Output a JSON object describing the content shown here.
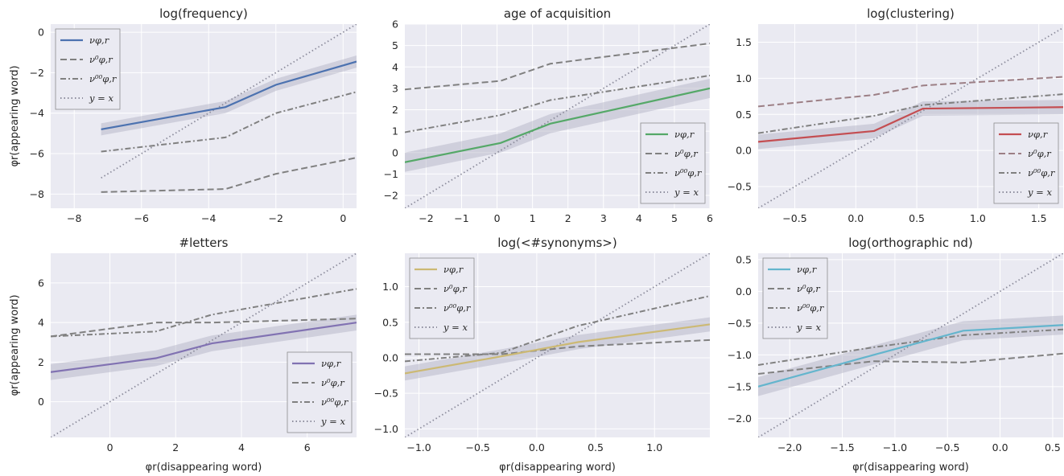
{
  "figure": {
    "ylabel_text": "φr(appearing word)",
    "xlabel_text": "φr(disappearing word)"
  },
  "legend_labels": {
    "nu": "νφ,r",
    "nu0": "ν⁰φ,r",
    "nu00": "ν⁰⁰φ,r",
    "identity": "y = x"
  },
  "chart_data": [
    {
      "type": "line",
      "title": "log(frequency)",
      "color": "#4c72b0",
      "xlim": [
        -8.7,
        0.4
      ],
      "ylim": [
        -8.7,
        0.4
      ],
      "xticks": [
        -8,
        -6,
        -4,
        -2,
        0
      ],
      "yticks": [
        -8,
        -6,
        -4,
        -2,
        0
      ],
      "legend_loc": "upper-left",
      "series": [
        {
          "name": "νφ,r",
          "style": "solid",
          "x": [
            -7.2,
            -3.5,
            -2.0,
            0.4
          ],
          "y": [
            -4.8,
            -3.7,
            -2.6,
            -1.45
          ],
          "band": 0.3
        },
        {
          "name": "ν⁰φ,r",
          "style": "dashed",
          "x": [
            -7.2,
            -3.5,
            -2.0,
            0.4
          ],
          "y": [
            -7.9,
            -7.75,
            -7.0,
            -6.2
          ]
        },
        {
          "name": "ν⁰⁰φ,r",
          "style": "dashdot",
          "x": [
            -7.2,
            -3.5,
            -2.0,
            0.4
          ],
          "y": [
            -5.9,
            -5.2,
            -4.0,
            -2.95
          ]
        },
        {
          "name": "y = x",
          "style": "dotted",
          "x": [
            -7.2,
            0.4
          ],
          "y": [
            -7.2,
            0.4
          ]
        }
      ]
    },
    {
      "type": "line",
      "title": "age of acquisition",
      "color": "#55a868",
      "xlim": [
        -2.6,
        6.0
      ],
      "ylim": [
        -2.6,
        6.0
      ],
      "xticks": [
        -2,
        -1,
        0,
        1,
        2,
        3,
        4,
        5,
        6
      ],
      "yticks": [
        -2,
        -1,
        0,
        1,
        2,
        3,
        4,
        5,
        6
      ],
      "legend_loc": "lower-right",
      "series": [
        {
          "name": "νφ,r",
          "style": "solid",
          "x": [
            -2.6,
            0.1,
            1.5,
            6.0
          ],
          "y": [
            -0.45,
            0.45,
            1.35,
            3.0
          ],
          "band": 0.45
        },
        {
          "name": "ν⁰φ,r",
          "style": "dashed",
          "x": [
            -2.6,
            0.1,
            1.5,
            6.0
          ],
          "y": [
            2.95,
            3.35,
            4.15,
            5.1
          ]
        },
        {
          "name": "ν⁰⁰φ,r",
          "style": "dashdot",
          "x": [
            -2.6,
            0.1,
            1.5,
            6.0
          ],
          "y": [
            0.95,
            1.75,
            2.45,
            3.6
          ]
        },
        {
          "name": "y = x",
          "style": "dotted",
          "x": [
            -2.6,
            6.0
          ],
          "y": [
            -2.6,
            6.0
          ]
        }
      ]
    },
    {
      "type": "line",
      "title": "log(clustering)",
      "color": "#c44e52",
      "xlim": [
        -0.8,
        1.7
      ],
      "ylim": [
        -0.8,
        1.75
      ],
      "xticks": [
        -0.5,
        0.0,
        0.5,
        1.0,
        1.5
      ],
      "yticks": [
        -0.5,
        0.0,
        0.5,
        1.0,
        1.5
      ],
      "xtick_labels": [
        "−0.5",
        "0.0",
        "0.5",
        "1.0",
        "1.5"
      ],
      "ytick_labels": [
        "−0.5",
        "0.0",
        "0.5",
        "1.0",
        "1.5"
      ],
      "legend_loc": "lower-right",
      "series": [
        {
          "name": "νφ,r",
          "style": "solid",
          "x": [
            -0.8,
            0.15,
            0.55,
            1.7
          ],
          "y": [
            0.12,
            0.27,
            0.58,
            0.6
          ],
          "band": 0.1
        },
        {
          "name": "ν⁰φ,r",
          "style": "dashed",
          "x": [
            -0.8,
            0.15,
            0.55,
            1.7
          ],
          "y": [
            0.61,
            0.77,
            0.9,
            1.02
          ]
        },
        {
          "name": "ν⁰⁰φ,r",
          "style": "dashdot",
          "x": [
            -0.8,
            0.15,
            0.55,
            1.7
          ],
          "y": [
            0.24,
            0.48,
            0.63,
            0.78
          ]
        },
        {
          "name": "y = x",
          "style": "dotted",
          "x": [
            -0.8,
            1.7
          ],
          "y": [
            -0.8,
            1.7
          ]
        }
      ]
    },
    {
      "type": "line",
      "title": "#letters",
      "color": "#8172b2",
      "xlim": [
        -1.8,
        7.5
      ],
      "ylim": [
        -1.8,
        7.5
      ],
      "xticks": [
        0,
        2,
        4,
        6
      ],
      "yticks": [
        0,
        2,
        4,
        6
      ],
      "legend_loc": "lower-right",
      "series": [
        {
          "name": "νφ,r",
          "style": "solid",
          "x": [
            -1.8,
            1.4,
            3.1,
            7.5
          ],
          "y": [
            1.5,
            2.2,
            2.95,
            4.0
          ],
          "band": 0.4
        },
        {
          "name": "ν⁰φ,r",
          "style": "dashed",
          "x": [
            -1.8,
            1.4,
            3.1,
            7.5
          ],
          "y": [
            3.3,
            4.0,
            4.0,
            4.2
          ]
        },
        {
          "name": "ν⁰⁰φ,r",
          "style": "dashdot",
          "x": [
            -1.8,
            1.4,
            3.1,
            7.5
          ],
          "y": [
            3.3,
            3.55,
            4.4,
            5.7
          ]
        },
        {
          "name": "y = x",
          "style": "dotted",
          "x": [
            -1.8,
            7.5
          ],
          "y": [
            -1.8,
            7.5
          ]
        }
      ]
    },
    {
      "type": "line",
      "title": "log(<#synonyms>)",
      "color": "#ccb974",
      "xlim": [
        -1.12,
        1.47
      ],
      "ylim": [
        -1.12,
        1.47
      ],
      "xticks": [
        -1.0,
        -0.5,
        0.0,
        0.5,
        1.0
      ],
      "yticks": [
        -1.0,
        -0.5,
        0.0,
        0.5,
        1.0
      ],
      "xtick_labels": [
        "−1.0",
        "−0.5",
        "0.0",
        "0.5",
        "1.0"
      ],
      "ytick_labels": [
        "−1.0",
        "−0.5",
        "0.0",
        "0.5",
        "1.0"
      ],
      "legend_loc": "upper-left",
      "series": [
        {
          "name": "νφ,r",
          "style": "solid",
          "x": [
            -1.12,
            -0.3,
            0.35,
            1.47
          ],
          "y": [
            -0.22,
            0.02,
            0.22,
            0.47
          ],
          "band": 0.1
        },
        {
          "name": "ν⁰φ,r",
          "style": "dashed",
          "x": [
            -1.12,
            -0.3,
            0.35,
            1.47
          ],
          "y": [
            0.05,
            0.05,
            0.16,
            0.25
          ]
        },
        {
          "name": "ν⁰⁰φ,r",
          "style": "dashdot",
          "x": [
            -1.12,
            -0.3,
            0.35,
            1.47
          ],
          "y": [
            -0.05,
            0.07,
            0.45,
            0.87
          ]
        },
        {
          "name": "y = x",
          "style": "dotted",
          "x": [
            -1.12,
            1.47
          ],
          "y": [
            -1.12,
            1.47
          ]
        }
      ]
    },
    {
      "type": "line",
      "title": "log(orthographic nd)",
      "color": "#64b5cd",
      "xlim": [
        -2.3,
        0.6
      ],
      "ylim": [
        -2.3,
        0.6
      ],
      "xticks": [
        -2.0,
        -1.5,
        -1.0,
        -0.5,
        0.0,
        0.5
      ],
      "yticks": [
        -2.0,
        -1.5,
        -1.0,
        -0.5,
        0.0,
        0.5
      ],
      "xtick_labels": [
        "−2.0",
        "−1.5",
        "−1.0",
        "−0.5",
        "0.0",
        "0.5"
      ],
      "ytick_labels": [
        "−2.0",
        "−1.5",
        "−1.0",
        "−0.5",
        "0.0",
        "0.5"
      ],
      "legend_loc": "upper-left",
      "series": [
        {
          "name": "νφ,r",
          "style": "solid",
          "x": [
            -2.3,
            -1.2,
            -0.35,
            0.6
          ],
          "y": [
            -1.5,
            -1.0,
            -0.62,
            -0.53
          ],
          "band": 0.15
        },
        {
          "name": "ν⁰φ,r",
          "style": "dashed",
          "x": [
            -2.3,
            -1.2,
            -0.35,
            0.6
          ],
          "y": [
            -1.3,
            -1.1,
            -1.12,
            -0.98
          ]
        },
        {
          "name": "ν⁰⁰φ,r",
          "style": "dashdot",
          "x": [
            -2.3,
            -1.2,
            -0.35,
            0.6
          ],
          "y": [
            -1.16,
            -0.88,
            -0.69,
            -0.6
          ]
        },
        {
          "name": "y = x",
          "style": "dotted",
          "x": [
            -2.3,
            0.6
          ],
          "y": [
            -2.3,
            0.6
          ]
        }
      ]
    }
  ]
}
